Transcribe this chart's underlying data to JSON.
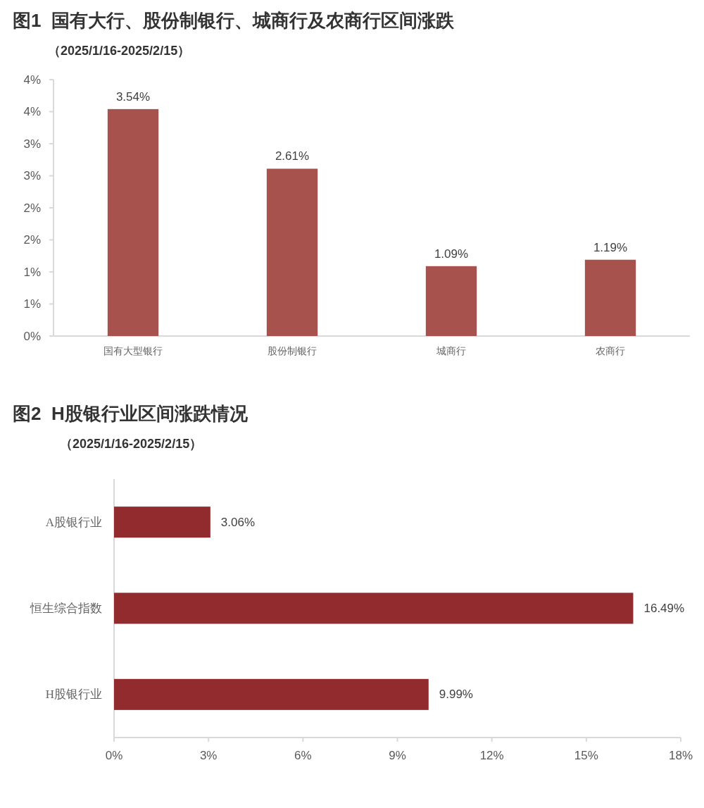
{
  "chart_data": [
    {
      "type": "bar",
      "title": "图1  国有大行、股份制银行、城商行及农商行区间涨跌",
      "subtitle": "（2025/1/16-2025/2/15）",
      "categories": [
        "国有大型银行",
        "股份制银行",
        "城商行",
        "农商行"
      ],
      "values": [
        3.54,
        2.61,
        1.09,
        1.19
      ],
      "value_labels": [
        "3.54%",
        "2.61%",
        "1.09%",
        "1.19%"
      ],
      "color": "#a8524e",
      "ylim": [
        0,
        4
      ],
      "yticks": [
        {
          "value": 0,
          "label": "0%"
        },
        {
          "value": 0.5,
          "label": "1%"
        },
        {
          "value": 1,
          "label": "1%"
        },
        {
          "value": 1.5,
          "label": "2%"
        },
        {
          "value": 2,
          "label": "2%"
        },
        {
          "value": 2.5,
          "label": "3%"
        },
        {
          "value": 3,
          "label": "3%"
        },
        {
          "value": 3.5,
          "label": "4%"
        },
        {
          "value": 4,
          "label": "4%"
        }
      ]
    },
    {
      "type": "bar",
      "orientation": "horizontal",
      "title": "图2  H股银行业区间涨跌情况",
      "subtitle": "（2025/1/16-2025/2/15）",
      "categories": [
        "A股银行业",
        "恒生综合指数",
        "H股银行业"
      ],
      "values": [
        3.06,
        16.49,
        9.99
      ],
      "value_labels": [
        "3.06%",
        "16.49%",
        "9.99%"
      ],
      "color": "#922b2d",
      "xlim": [
        0,
        18
      ],
      "xticks": [
        {
          "value": 0,
          "label": "0%"
        },
        {
          "value": 3,
          "label": "3%"
        },
        {
          "value": 6,
          "label": "6%"
        },
        {
          "value": 9,
          "label": "9%"
        },
        {
          "value": 12,
          "label": "12%"
        },
        {
          "value": 15,
          "label": "15%"
        },
        {
          "value": 18,
          "label": "18%"
        }
      ]
    }
  ]
}
